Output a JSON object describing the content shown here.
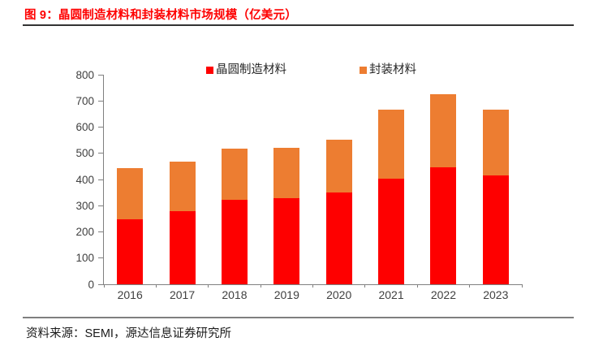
{
  "figure": {
    "title": "图 9：晶圆制造材料和封装材料市场规模（亿美元）",
    "source": "资料来源：SEMI，源达信息证券研究所"
  },
  "colors": {
    "title_text": "#fe0000",
    "wafer_series": "#fe0000",
    "packaging_series": "#ed7d31",
    "axis_line": "#808080",
    "tick_label": "#404040",
    "top_rule": "#333333",
    "bottom_rule": "#7f7f7f"
  },
  "chart_data": {
    "type": "bar",
    "stacked": true,
    "title": "晶圆制造材料和封装材料市场规模（亿美元）",
    "categories": [
      "2016",
      "2017",
      "2018",
      "2019",
      "2020",
      "2021",
      "2022",
      "2023"
    ],
    "series": [
      {
        "name": "晶圆制造材料",
        "color": "#fe0000",
        "values": [
          247,
          278,
          322,
          328,
          349,
          404,
          447,
          415
        ]
      },
      {
        "name": "封装材料",
        "color": "#ed7d31",
        "values": [
          196,
          191,
          197,
          192,
          204,
          264,
          280,
          252
        ]
      }
    ],
    "totals": [
      443,
      469,
      519,
      520,
      553,
      668,
      727,
      667
    ],
    "ylim": [
      0,
      800
    ],
    "ytick_step": 100,
    "ytick_labels": [
      "0",
      "100",
      "200",
      "300",
      "400",
      "500",
      "600",
      "700",
      "800"
    ],
    "legend_position": "top",
    "grid": false,
    "unit": "亿美元"
  }
}
